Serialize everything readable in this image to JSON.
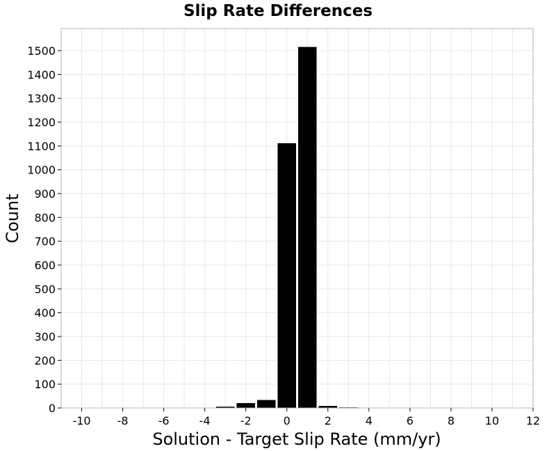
{
  "chart_data": {
    "type": "bar",
    "title": "Slip Rate Differences",
    "xlabel": "Solution - Target Slip Rate (mm/yr)",
    "ylabel": "Count",
    "xlim": [
      -11,
      12
    ],
    "ylim": [
      0,
      1600
    ],
    "x_ticks": [
      -10,
      -8,
      -6,
      -4,
      -2,
      0,
      2,
      4,
      6,
      8,
      10,
      12
    ],
    "y_ticks": [
      0,
      100,
      200,
      300,
      400,
      500,
      600,
      700,
      800,
      900,
      1000,
      1100,
      1200,
      1300,
      1400,
      1500
    ],
    "bin_width": 1,
    "bins": [
      {
        "center": -10,
        "value": 0
      },
      {
        "center": -9,
        "value": 0
      },
      {
        "center": -8,
        "value": 0
      },
      {
        "center": -7,
        "value": 0
      },
      {
        "center": -6,
        "value": 0
      },
      {
        "center": -5,
        "value": 0
      },
      {
        "center": -4,
        "value": 2
      },
      {
        "center": -3,
        "value": 7
      },
      {
        "center": -2,
        "value": 22
      },
      {
        "center": -1,
        "value": 35
      },
      {
        "center": 0,
        "value": 1113
      },
      {
        "center": 1,
        "value": 1517
      },
      {
        "center": 2,
        "value": 10
      },
      {
        "center": 3,
        "value": 4
      },
      {
        "center": 4,
        "value": 0
      },
      {
        "center": 5,
        "value": 0
      },
      {
        "center": 6,
        "value": 0
      },
      {
        "center": 7,
        "value": 0
      },
      {
        "center": 8,
        "value": 0
      },
      {
        "center": 9,
        "value": 0
      },
      {
        "center": 10,
        "value": 0
      },
      {
        "center": 11,
        "value": 0
      }
    ],
    "grid": true,
    "legend": "none",
    "bar_color": "#000000"
  }
}
